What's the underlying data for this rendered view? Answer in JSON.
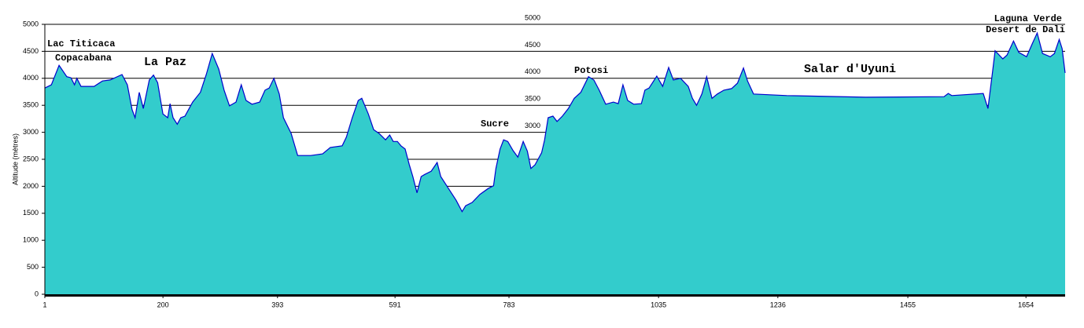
{
  "chart_data": {
    "type": "area",
    "y_label": "Altitude (mètres)",
    "x": [
      1,
      12,
      25,
      38,
      45,
      51,
      55,
      62,
      84,
      98,
      111,
      131,
      140,
      148,
      153,
      160,
      167,
      177,
      184,
      191,
      200,
      208,
      212,
      217,
      224,
      230,
      237,
      250,
      263,
      273,
      283,
      294,
      303,
      312,
      323,
      332,
      340,
      350,
      363,
      372,
      379,
      387,
      396,
      403,
      416,
      427,
      449,
      469,
      482,
      502,
      509,
      519,
      529,
      535,
      546,
      555,
      564,
      575,
      582,
      588,
      595,
      601,
      608,
      615,
      621,
      628,
      635,
      641,
      652,
      662,
      668,
      681,
      694,
      704,
      710,
      721,
      734,
      748,
      757,
      761,
      768,
      774,
      781,
      790,
      798,
      807,
      814,
      820,
      827,
      838,
      843,
      849,
      857,
      864,
      873,
      883,
      893,
      904,
      917,
      926,
      935,
      946,
      959,
      967,
      975,
      983,
      993,
      1006,
      1012,
      1019,
      1032,
      1042,
      1052,
      1060,
      1072,
      1085,
      1092,
      1099,
      1108,
      1116,
      1125,
      1134,
      1145,
      1158,
      1168,
      1178,
      1185,
      1195,
      1251,
      1384,
      1516,
      1523,
      1529,
      1582,
      1590,
      1598,
      1602,
      1615,
      1622,
      1633,
      1642,
      1655,
      1665,
      1673,
      1682,
      1695,
      1702,
      1710,
      1715,
      1720
    ],
    "values": [
      3820,
      3880,
      4240,
      4030,
      4010,
      3880,
      4000,
      3850,
      3850,
      3950,
      3970,
      4070,
      3880,
      3420,
      3270,
      3740,
      3440,
      3970,
      4060,
      3920,
      3340,
      3270,
      3530,
      3270,
      3150,
      3270,
      3300,
      3560,
      3740,
      4070,
      4460,
      4170,
      3780,
      3490,
      3560,
      3880,
      3590,
      3520,
      3560,
      3780,
      3820,
      4000,
      3710,
      3270,
      2980,
      2570,
      2570,
      2600,
      2720,
      2750,
      2910,
      3270,
      3590,
      3630,
      3340,
      3050,
      2980,
      2860,
      2950,
      2830,
      2830,
      2750,
      2690,
      2400,
      2180,
      1880,
      2180,
      2220,
      2280,
      2440,
      2180,
      1960,
      1740,
      1530,
      1640,
      1700,
      1850,
      1960,
      2010,
      2330,
      2690,
      2860,
      2830,
      2660,
      2540,
      2830,
      2650,
      2330,
      2400,
      2620,
      2860,
      3270,
      3300,
      3200,
      3300,
      3440,
      3630,
      3740,
      4030,
      3970,
      3780,
      3520,
      3560,
      3530,
      3880,
      3590,
      3520,
      3530,
      3780,
      3820,
      4040,
      3850,
      4200,
      3970,
      4000,
      3850,
      3630,
      3500,
      3710,
      4030,
      3630,
      3710,
      3780,
      3810,
      3910,
      4190,
      3950,
      3710,
      3680,
      3650,
      3660,
      3720,
      3680,
      3720,
      3440,
      4140,
      4510,
      4360,
      4430,
      4690,
      4480,
      4400,
      4650,
      4840,
      4460,
      4400,
      4460,
      4720,
      4550,
      4100
    ],
    "color": "#33cccc",
    "line_color": "#0000cc",
    "xlim": [
      1,
      1720
    ],
    "ylim": [
      0,
      5000
    ],
    "xticks": [
      1,
      200,
      393,
      591,
      783,
      1035,
      1236,
      1455,
      1654
    ],
    "yticks": [
      0,
      500,
      1000,
      1500,
      2000,
      2500,
      3000,
      3500,
      4000,
      4500,
      5000
    ],
    "inner_yticks": [
      3000,
      3500,
      4000,
      4500,
      5000
    ],
    "grid": true,
    "annotations": [
      "Lac Titicaca",
      "Copacabana",
      "La Paz",
      "Sucre",
      "Potosi",
      "Salar d'Uyuni",
      "Laguna Verde",
      "Desert de Dali"
    ]
  }
}
